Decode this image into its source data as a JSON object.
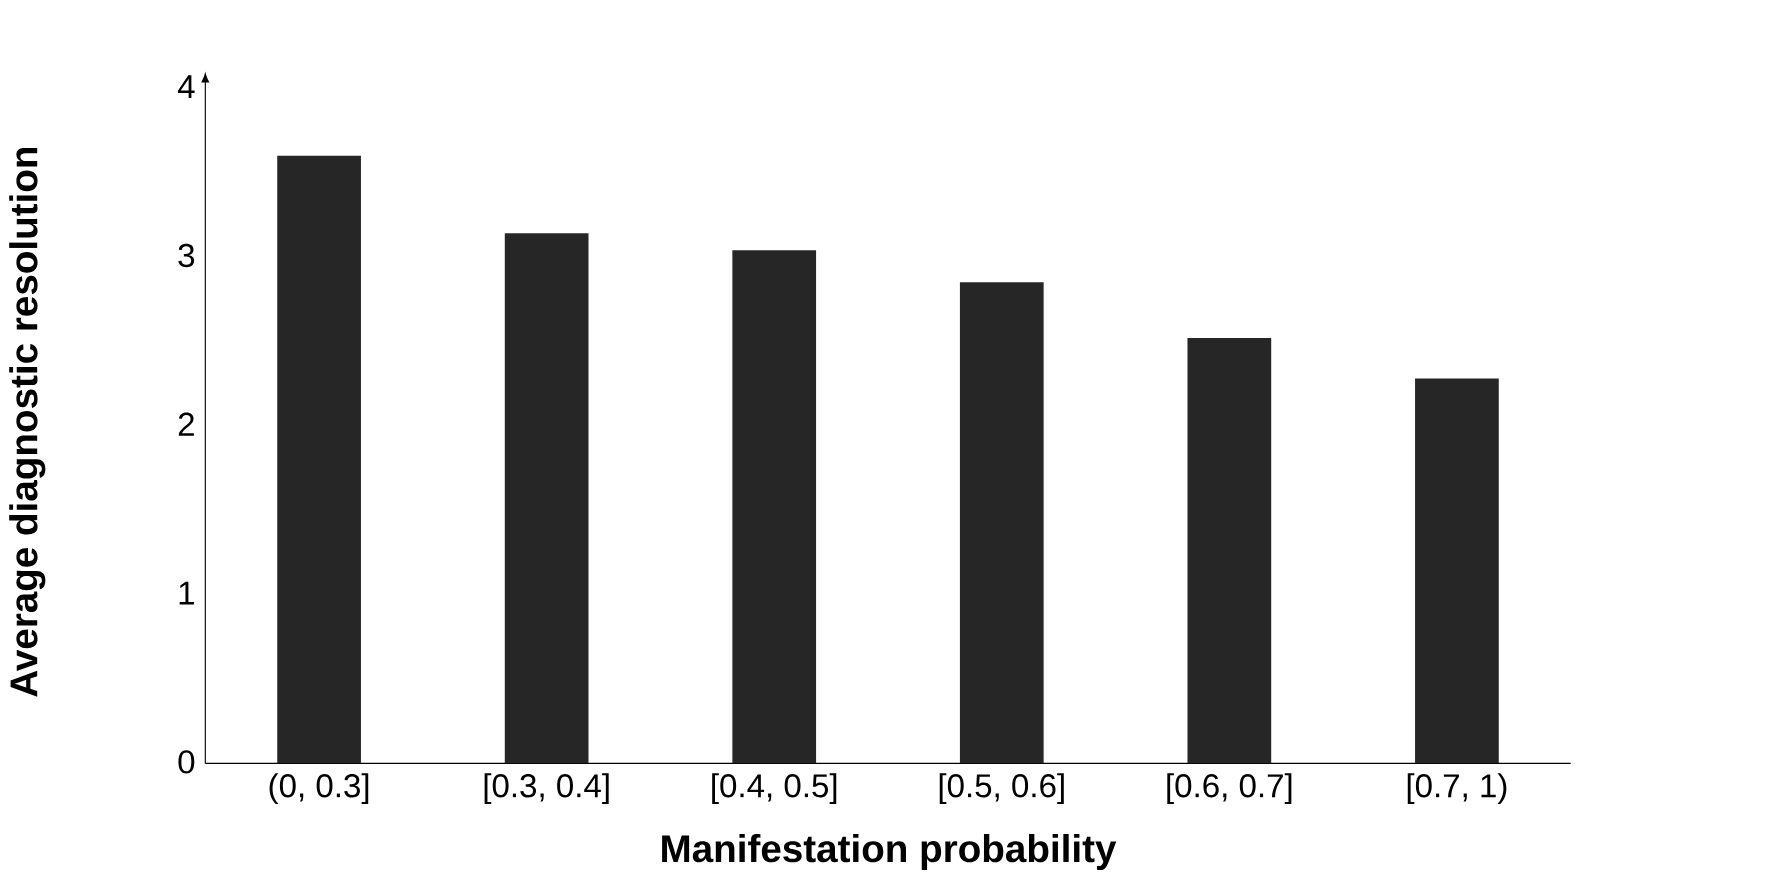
{
  "chart_data": {
    "type": "bar",
    "xlabel": "Manifestation probability",
    "ylabel": "Average diagnostic resolution",
    "categories": [
      "(0, 0.3]",
      "[0.3, 0.4]",
      "[0.4, 0.5]",
      "[0.5, 0.6]",
      "[0.6, 0.7]",
      "[0.7, 1)"
    ],
    "values": [
      3.6,
      3.14,
      3.04,
      2.85,
      2.52,
      2.28
    ],
    "color": "#262626",
    "ylim": [
      0,
      4.05
    ],
    "yticks": [
      0,
      1,
      2,
      3,
      4
    ],
    "grid": false
  }
}
